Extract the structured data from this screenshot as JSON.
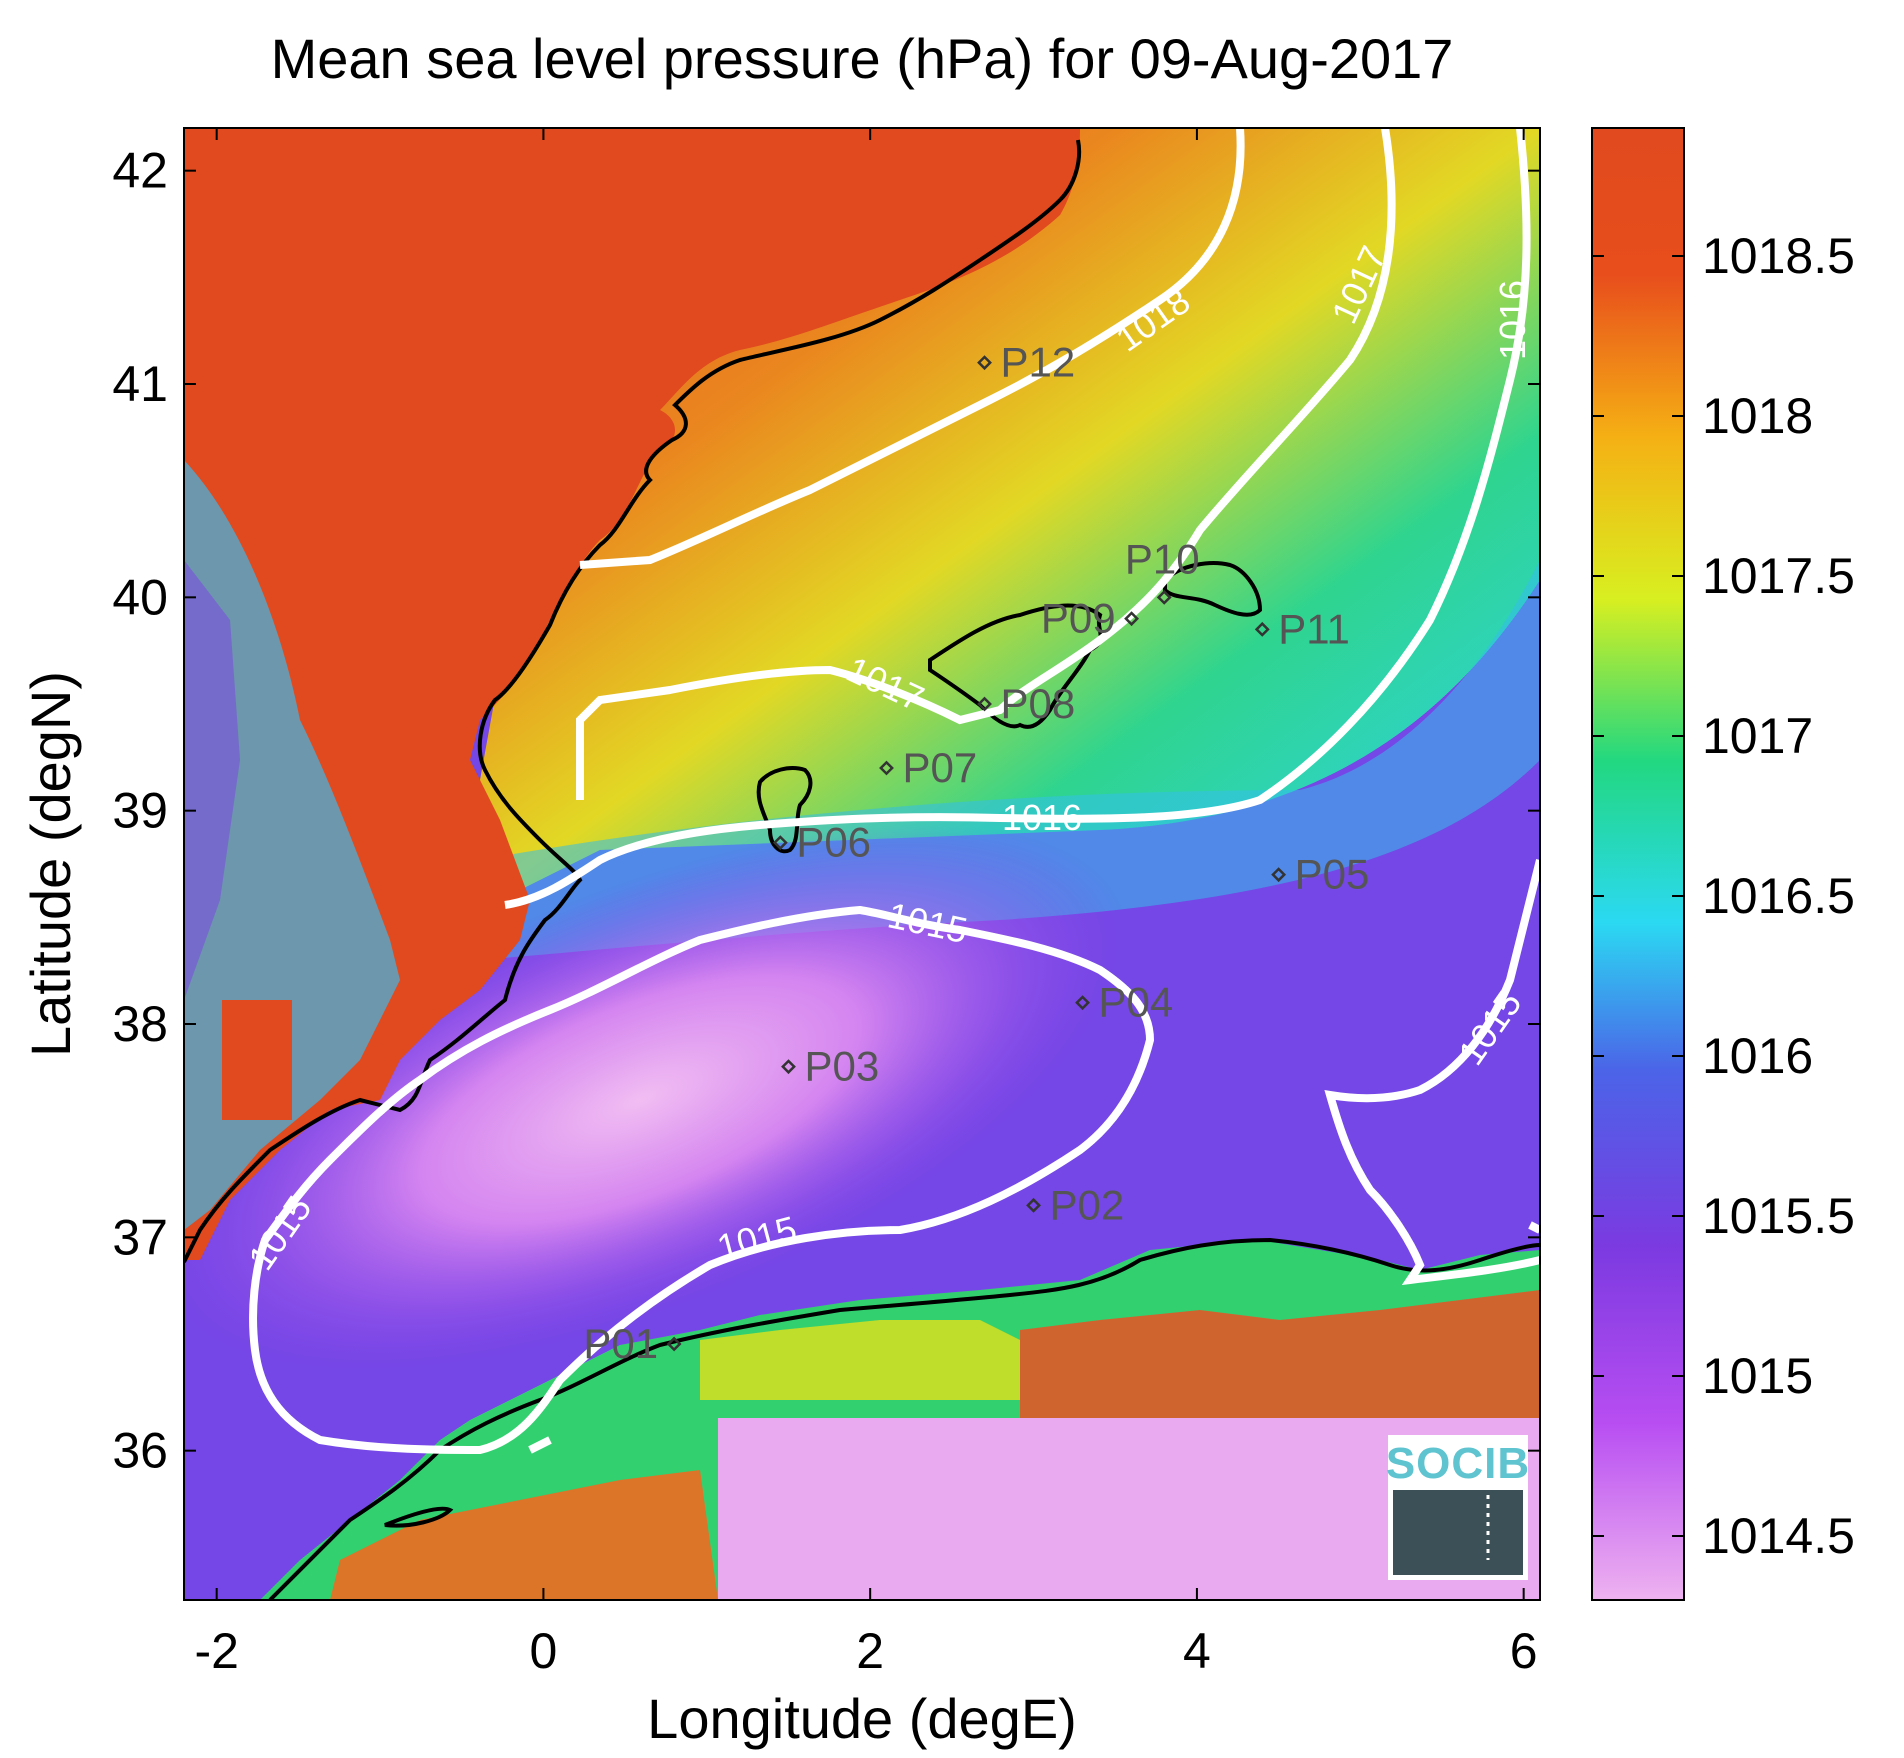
{
  "map": {
    "title": "Mean sea level pressure (hPa) for 09-Aug-2017",
    "xlabel": "Longitude (degE)",
    "ylabel": "Latitude (degN)",
    "xlim": [
      -2.2,
      6.1
    ],
    "ylim": [
      35.3,
      42.2
    ],
    "x_ticks": [
      "-2",
      "0",
      "2",
      "4",
      "6"
    ],
    "y_ticks": [
      "36",
      "37",
      "38",
      "39",
      "40",
      "41",
      "42"
    ],
    "logo": "SOCIB"
  },
  "colorbar": {
    "range": [
      1014.3,
      1018.9
    ],
    "ticks": [
      "1014.5",
      "1015",
      "1015.5",
      "1016",
      "1016.5",
      "1017",
      "1017.5",
      "1018",
      "1018.5"
    ],
    "colors": [
      "#eeb2f0",
      "#b84ef2",
      "#7b3ae0",
      "#4b64e8",
      "#2bd9f2",
      "#22d880",
      "#d8ef20",
      "#f5b014",
      "#e84e1c"
    ]
  },
  "chart_data": {
    "type": "heatmap",
    "variable": "Mean sea level pressure (hPa)",
    "contour_labels": [
      "1018",
      "1017",
      "1017",
      "1016",
      "1016",
      "1015",
      "1015",
      "1015",
      "1015"
    ],
    "points": [
      {
        "name": "P01",
        "lon": 0.8,
        "lat": 36.5
      },
      {
        "name": "P02",
        "lon": 3.0,
        "lat": 37.15
      },
      {
        "name": "P03",
        "lon": 1.5,
        "lat": 37.8
      },
      {
        "name": "P04",
        "lon": 3.3,
        "lat": 38.1
      },
      {
        "name": "P05",
        "lon": 4.5,
        "lat": 38.7
      },
      {
        "name": "P06",
        "lon": 1.45,
        "lat": 38.85
      },
      {
        "name": "P07",
        "lon": 2.1,
        "lat": 39.2
      },
      {
        "name": "P08",
        "lon": 2.7,
        "lat": 39.5
      },
      {
        "name": "P09",
        "lon": 3.6,
        "lat": 39.9
      },
      {
        "name": "P10",
        "lon": 3.8,
        "lat": 40.0
      },
      {
        "name": "P11",
        "lon": 4.4,
        "lat": 39.85
      },
      {
        "name": "P12",
        "lon": 2.7,
        "lat": 41.1
      }
    ]
  }
}
